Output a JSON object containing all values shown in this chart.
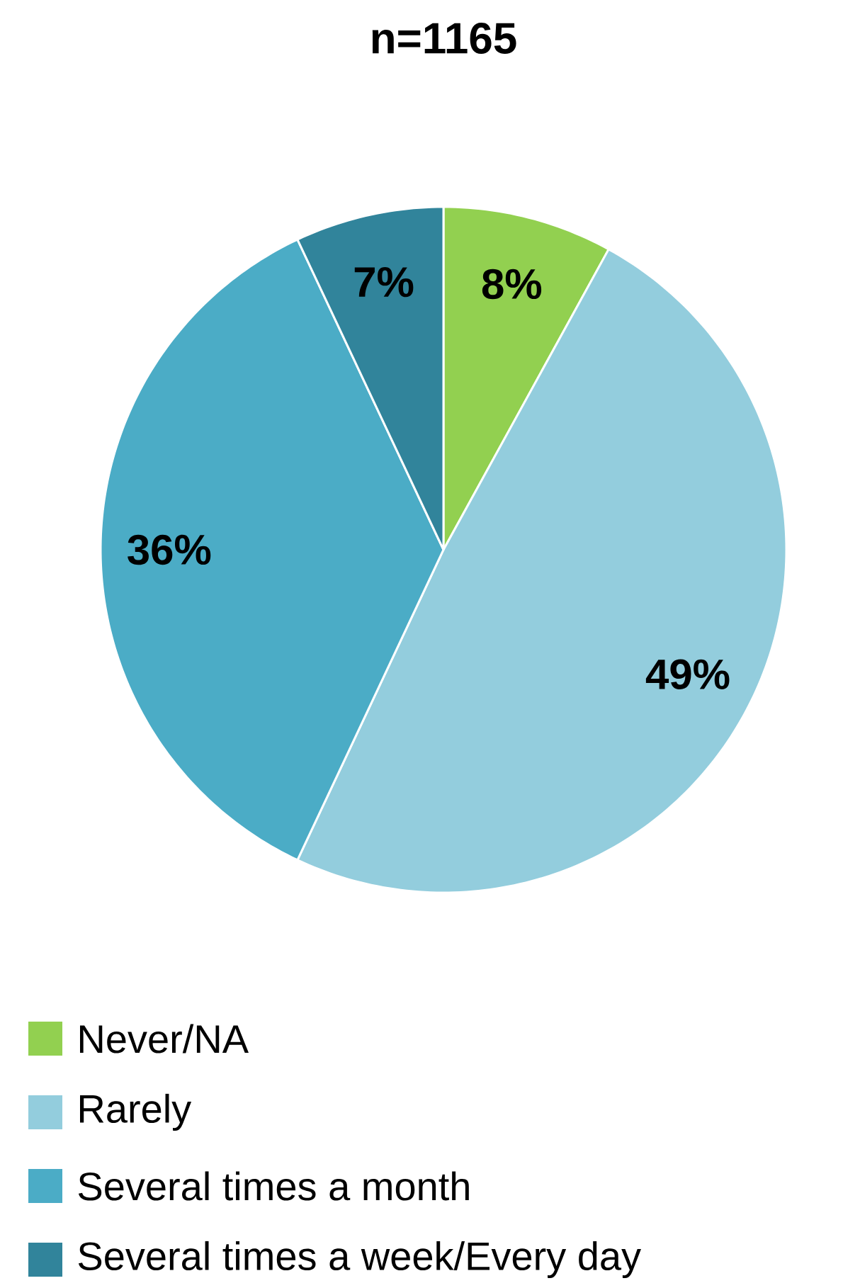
{
  "chart_data": {
    "type": "pie",
    "title": "n=1165",
    "categories": [
      "Never/NA",
      "Rarely",
      "Several times a month",
      "Several times a week/Every day"
    ],
    "values": [
      8,
      49,
      36,
      7
    ],
    "colors": [
      "#92d050",
      "#93cddd",
      "#4bacc6",
      "#31849b"
    ],
    "value_labels": [
      "8%",
      "49%",
      "36%",
      "7%"
    ],
    "legend": "bottom"
  }
}
